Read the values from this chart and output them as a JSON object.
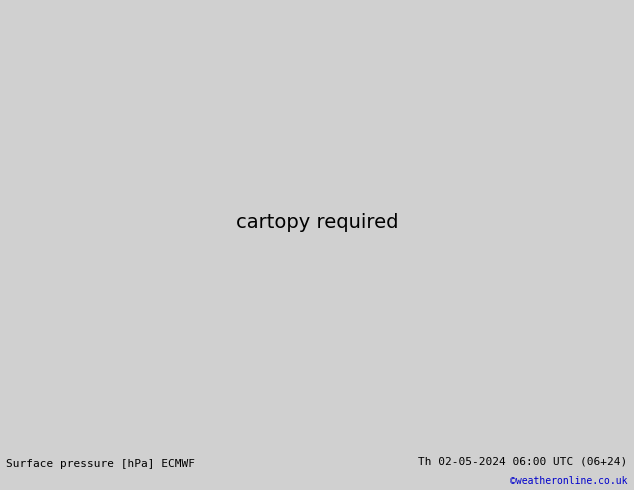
{
  "title_left": "Surface pressure [hPa] ECMWF",
  "title_right": "Th 02-05-2024 06:00 UTC (06+24)",
  "watermark": "©weatheronline.co.uk",
  "land_color": "#b5dba0",
  "ocean_color": "#d4d4d4",
  "border_color": "#888888",
  "footer_bg": "#d0d0d0",
  "contour_blue": "#0000cc",
  "contour_black": "#000000",
  "contour_red": "#cc0000",
  "footer_fontsize": 8,
  "watermark_color": "#0000cc",
  "label_fontsize": 6.5,
  "lon_min": -120,
  "lon_max": -30,
  "lat_min": -60,
  "lat_max": 40
}
